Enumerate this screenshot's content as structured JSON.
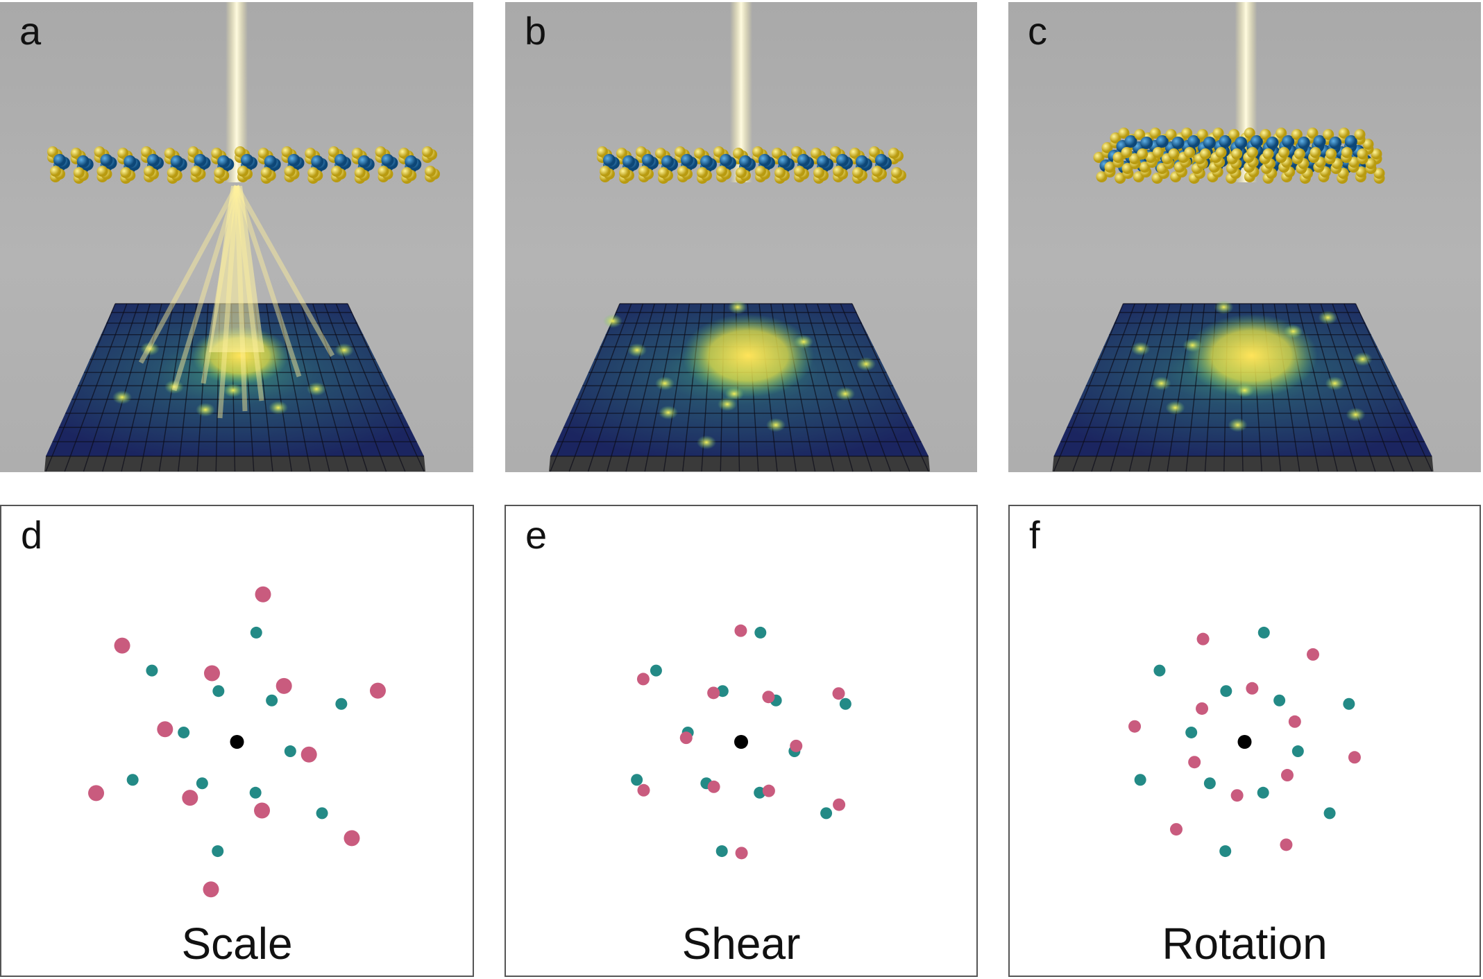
{
  "panels": [
    {
      "letter": "a",
      "variant": "scale"
    },
    {
      "letter": "b",
      "variant": "shear"
    },
    {
      "letter": "c",
      "variant": "rotation"
    }
  ],
  "plots": [
    {
      "letter": "d",
      "caption": "Scale"
    },
    {
      "letter": "e",
      "caption": "Shear"
    },
    {
      "letter": "f",
      "caption": "Rotation"
    }
  ],
  "colors": {
    "reference": "#238a86",
    "transformed": "#c95b7e",
    "center": "#000000",
    "sulfur": "#e6cf2a",
    "metal": "#1f6fa8",
    "beam": "#fff3a8",
    "detector": "#1b2a6b"
  }
}
